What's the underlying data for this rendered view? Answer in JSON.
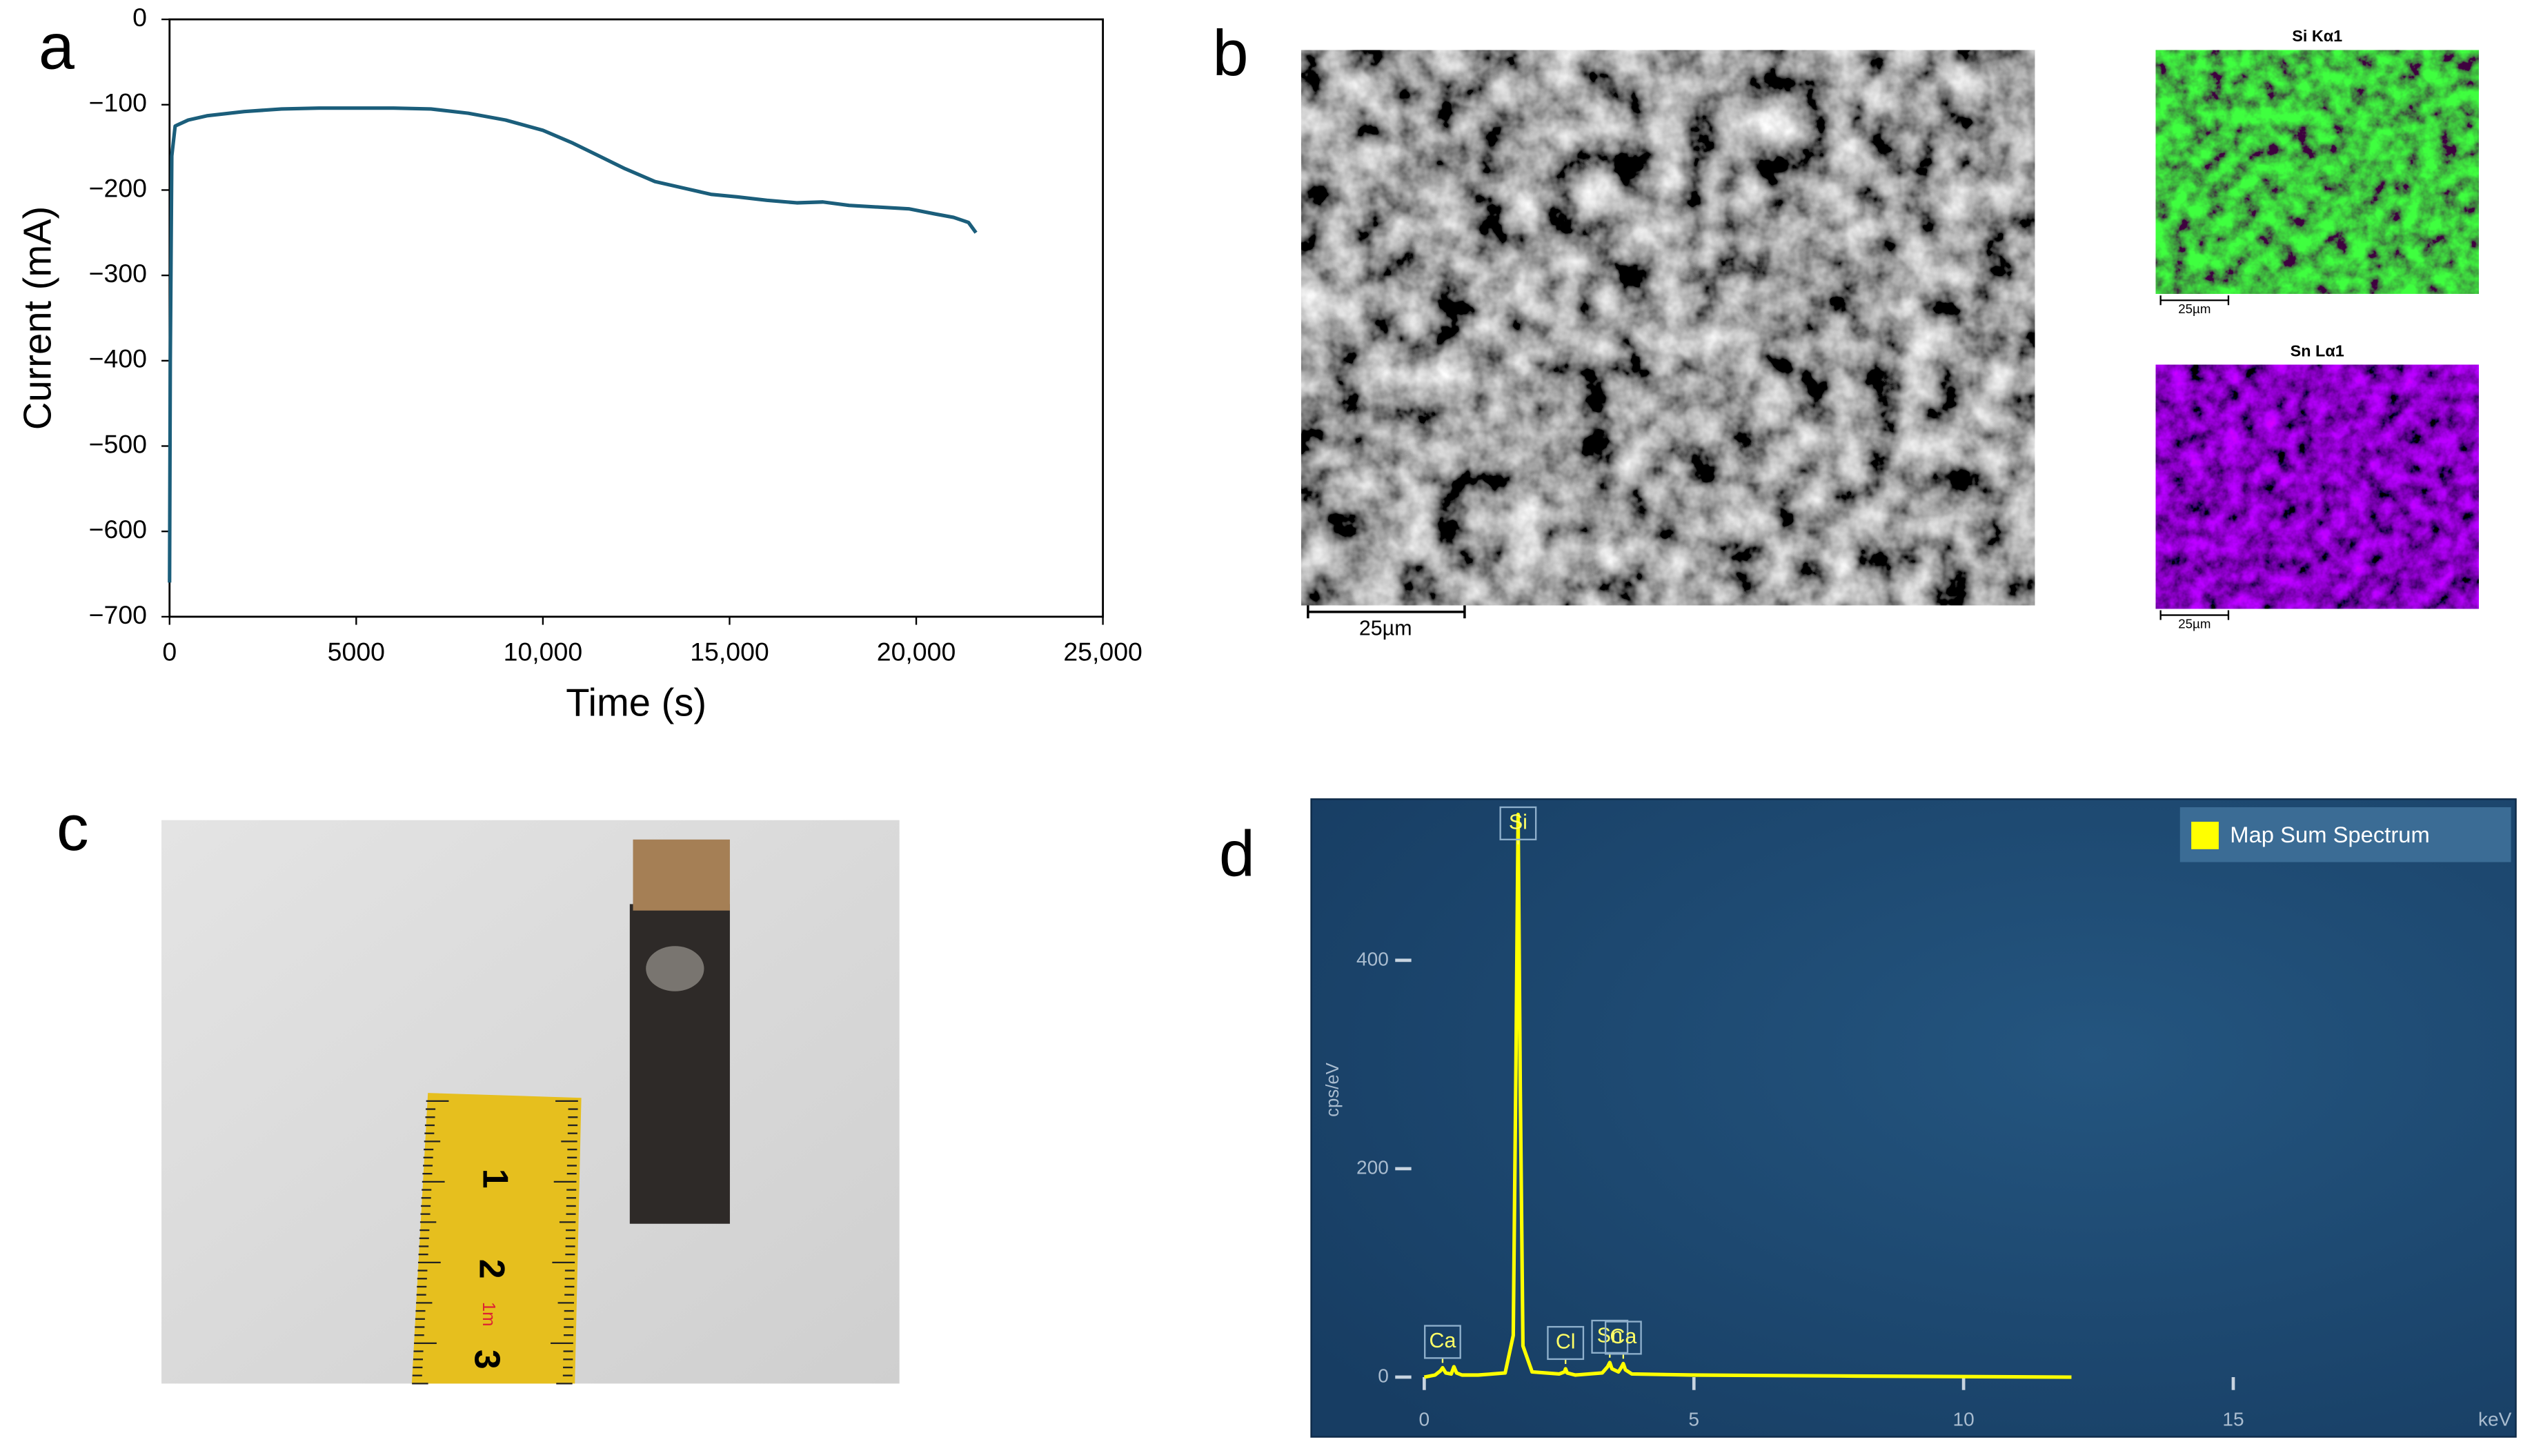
{
  "panel_labels": [
    "a",
    "b",
    "c",
    "d"
  ],
  "chart_data": [
    {
      "type": "line",
      "xlabel": "Time (s)",
      "ylabel": "Current (mA)",
      "color": "#1b5e7b",
      "x": [
        0,
        20,
        60,
        150,
        500,
        1000,
        2000,
        3000,
        4000,
        5000,
        6000,
        7000,
        8000,
        9000,
        10000,
        10800,
        11500,
        12200,
        13000,
        13800,
        14500,
        15200,
        16000,
        16800,
        17500,
        18200,
        19000,
        19800,
        20500,
        21000,
        21400,
        21600
      ],
      "values": [
        -660,
        -400,
        -160,
        -125,
        -118,
        -113,
        -108,
        -105,
        -104,
        -104,
        -104,
        -105,
        -110,
        -118,
        -130,
        -145,
        -160,
        -175,
        -190,
        -198,
        -205,
        -208,
        -212,
        -215,
        -214,
        -218,
        -220,
        -222,
        -228,
        -232,
        -238,
        -250
      ],
      "xlim": [
        0,
        25000
      ],
      "xticks": [
        0,
        5000,
        {
          "value": 10000,
          "label": "10,000"
        },
        {
          "value": 15000,
          "label": "15,000"
        },
        {
          "value": 20000,
          "label": "20,000"
        },
        {
          "value": 25000,
          "label": "25,000"
        }
      ],
      "ylim": [
        -700,
        0
      ],
      "yticks": [
        0,
        {
          "value": -100,
          "label": "−100"
        },
        {
          "value": -200,
          "label": "−200"
        },
        {
          "value": -300,
          "label": "−300"
        },
        {
          "value": -400,
          "label": "−400"
        },
        {
          "value": -500,
          "label": "−500"
        },
        {
          "value": -600,
          "label": "−600"
        },
        {
          "value": -700,
          "label": "−700"
        }
      ]
    },
    {
      "type": "line",
      "xlabel": "keV",
      "ylabel": "cps/eV",
      "x": [
        0,
        0.2,
        0.3,
        0.34,
        0.4,
        0.5,
        0.55,
        0.6,
        0.7,
        1.0,
        1.5,
        1.65,
        1.7,
        1.74,
        1.78,
        1.83,
        2.0,
        2.5,
        2.6,
        2.62,
        2.65,
        2.8,
        3.3,
        3.4,
        3.44,
        3.48,
        3.6,
        3.65,
        3.69,
        3.73,
        3.85,
        5,
        8,
        12
      ],
      "series": [
        {
          "name": "Map Sum Spectrum",
          "color": "#ffff00",
          "values": [
            0,
            2,
            6,
            9,
            4,
            3,
            10,
            4,
            2,
            2,
            4,
            40,
            300,
            540,
            280,
            30,
            5,
            3,
            5,
            8,
            4,
            2,
            4,
            10,
            14,
            8,
            5,
            9,
            13,
            7,
            3,
            2,
            1,
            0
          ]
        }
      ],
      "annotations": [
        {
          "text": "Ca",
          "x": 0.34
        },
        {
          "text": "Si",
          "x": 1.74
        },
        {
          "text": "Cl",
          "x": 2.62
        },
        {
          "text": "Sn",
          "x": 3.44
        },
        {
          "text": "Ca",
          "x": 3.69
        }
      ],
      "xlim": [
        0,
        20
      ],
      "xticks": [
        0,
        5,
        10,
        15
      ],
      "ylim": [
        0,
        550
      ],
      "yticks": [
        0,
        200,
        400
      ]
    }
  ],
  "sem": {
    "scale_bar": "25µm"
  },
  "maps": [
    {
      "title": "Si Kα1",
      "scale_bar": "25µm"
    },
    {
      "title": "Sn Lα1",
      "scale_bar": "25µm"
    }
  ],
  "photo": {
    "ruler_labels": [
      "1",
      "2",
      "3"
    ],
    "ruler_mark": "1m"
  }
}
